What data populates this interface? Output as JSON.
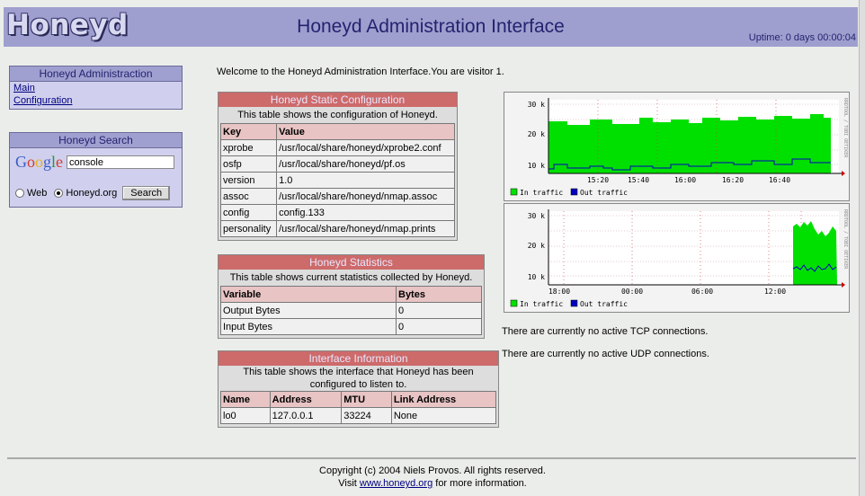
{
  "header": {
    "logo": "Honeyd",
    "title": "Honeyd Administration Interface",
    "uptime": "Uptime: 0 days 00:00:04"
  },
  "sidebar": {
    "admin_title": "Honeyd Administraction",
    "links": [
      {
        "label": "Main"
      },
      {
        "label": "Configuration"
      }
    ],
    "search_title": "Honeyd Search",
    "google_label": "Google",
    "search_value": "console",
    "radio_web": "Web",
    "radio_site": "Honeyd.org",
    "search_button": "Search"
  },
  "welcome": "Welcome to the Honeyd Administration Interface.You are visitor 1.",
  "static_config": {
    "title": "Honeyd Static Configuration",
    "desc": "This table shows the configuration of Honeyd.",
    "headers": [
      "Key",
      "Value"
    ],
    "rows": [
      [
        "xprobe",
        "/usr/local/share/honeyd/xprobe2.conf"
      ],
      [
        "osfp",
        "/usr/local/share/honeyd/pf.os"
      ],
      [
        "version",
        "1.0"
      ],
      [
        "assoc",
        "/usr/local/share/honeyd/nmap.assoc"
      ],
      [
        "config",
        "config.133"
      ],
      [
        "personality",
        "/usr/local/share/honeyd/nmap.prints"
      ]
    ]
  },
  "statistics": {
    "title": "Honeyd Statistics",
    "desc": "This table shows current statistics collected by Honeyd.",
    "headers": [
      "Variable",
      "Bytes"
    ],
    "rows": [
      [
        "Output Bytes",
        "0"
      ],
      [
        "Input Bytes",
        "0"
      ]
    ]
  },
  "interface": {
    "title": "Interface Information",
    "desc": "This table shows the interface that Honeyd has been configured to listen to.",
    "headers": [
      "Name",
      "Address",
      "MTU",
      "Link Address"
    ],
    "rows": [
      [
        "lo0",
        "127.0.0.1",
        "33224",
        "None"
      ]
    ]
  },
  "graph1": {
    "y_ticks": [
      "30 k",
      "20 k",
      "10 k"
    ],
    "x_ticks": [
      "15:20",
      "15:40",
      "16:00",
      "16:20",
      "16:40"
    ],
    "legend_in": "In traffic",
    "legend_out": "Out traffic",
    "side_label": "RRDTOOL / TOBI OETIKER"
  },
  "graph2": {
    "y_ticks": [
      "30 k",
      "20 k",
      "10 k"
    ],
    "x_ticks": [
      "18:00",
      "00:00",
      "06:00",
      "12:00"
    ],
    "legend_in": "In traffic",
    "legend_out": "Out traffic",
    "side_label": "RRDTOOL / TOBI OETIKER"
  },
  "connections": {
    "tcp": "There are currently no active TCP connections.",
    "udp": "There are currently no active UDP connections."
  },
  "footer": {
    "copyright": "Copyright (c) 2004 Niels Provos. All rights reserved.",
    "visit_prefix": "Visit ",
    "visit_link": "www.honeyd.org",
    "visit_suffix": " for more information."
  },
  "colors": {
    "header_bg": "#9f9fcf",
    "panel_title": "#cd6a6a",
    "in_traffic": "#00e000",
    "out_traffic": "#0000c0"
  }
}
